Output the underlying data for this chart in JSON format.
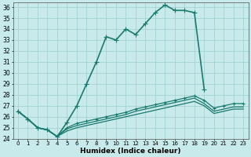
{
  "xlabel": "Humidex (Indice chaleur)",
  "bg_color": "#c8eaea",
  "line_color": "#1a7a6e",
  "grid_color": "#9ecece",
  "xmin": -0.5,
  "xmax": 23.5,
  "ymin": 24,
  "ymax": 36.4,
  "yticks": [
    24,
    25,
    26,
    27,
    28,
    29,
    30,
    31,
    32,
    33,
    34,
    35,
    36
  ],
  "xticks": [
    0,
    1,
    2,
    3,
    4,
    5,
    6,
    7,
    8,
    9,
    10,
    11,
    12,
    13,
    14,
    15,
    16,
    17,
    18,
    19,
    20,
    21,
    22,
    23
  ],
  "series": [
    {
      "x": [
        0,
        1,
        2,
        3,
        4,
        5,
        6,
        7,
        8,
        9,
        10,
        11,
        12,
        13,
        14,
        15,
        16,
        17,
        18,
        19
      ],
      "y": [
        26.5,
        25.8,
        25.0,
        24.8,
        24.2,
        25.5,
        27.0,
        29.0,
        31.0,
        33.3,
        33.0,
        34.0,
        33.5,
        34.5,
        35.5,
        36.2,
        35.7,
        35.7,
        35.5,
        28.5
      ],
      "marker": "+",
      "markersize": 4,
      "linewidth": 1.2,
      "has_marker": true
    },
    {
      "x": [
        0,
        1,
        2,
        3,
        4,
        5,
        6,
        7,
        8,
        9,
        10,
        11,
        12,
        13,
        14,
        15,
        16,
        17,
        18,
        19,
        20,
        21,
        22,
        23
      ],
      "y": [
        26.5,
        25.8,
        25.0,
        24.8,
        24.2,
        25.0,
        25.4,
        25.6,
        25.8,
        26.0,
        26.2,
        26.4,
        26.7,
        26.9,
        27.1,
        27.3,
        27.5,
        27.7,
        27.9,
        27.5,
        26.8,
        27.0,
        27.2,
        27.2
      ],
      "marker": "+",
      "markersize": 3,
      "linewidth": 0.9,
      "has_marker": true
    },
    {
      "x": [
        0,
        1,
        2,
        3,
        4,
        5,
        6,
        7,
        8,
        9,
        10,
        11,
        12,
        13,
        14,
        15,
        16,
        17,
        18,
        19,
        20,
        21,
        22,
        23
      ],
      "y": [
        26.5,
        25.8,
        25.0,
        24.8,
        24.2,
        24.9,
        25.2,
        25.4,
        25.6,
        25.8,
        26.0,
        26.2,
        26.5,
        26.7,
        26.9,
        27.1,
        27.3,
        27.5,
        27.7,
        27.2,
        26.5,
        26.7,
        26.9,
        26.9
      ],
      "marker": null,
      "markersize": 0,
      "linewidth": 0.9,
      "has_marker": false
    },
    {
      "x": [
        0,
        1,
        2,
        3,
        4,
        5,
        6,
        7,
        8,
        9,
        10,
        11,
        12,
        13,
        14,
        15,
        16,
        17,
        18,
        19,
        20,
        21,
        22,
        23
      ],
      "y": [
        26.5,
        25.8,
        25.0,
        24.8,
        24.2,
        24.7,
        25.0,
        25.2,
        25.4,
        25.6,
        25.8,
        26.0,
        26.2,
        26.4,
        26.6,
        26.8,
        27.0,
        27.2,
        27.4,
        27.0,
        26.3,
        26.5,
        26.7,
        26.7
      ],
      "marker": null,
      "markersize": 0,
      "linewidth": 0.9,
      "has_marker": false
    }
  ]
}
